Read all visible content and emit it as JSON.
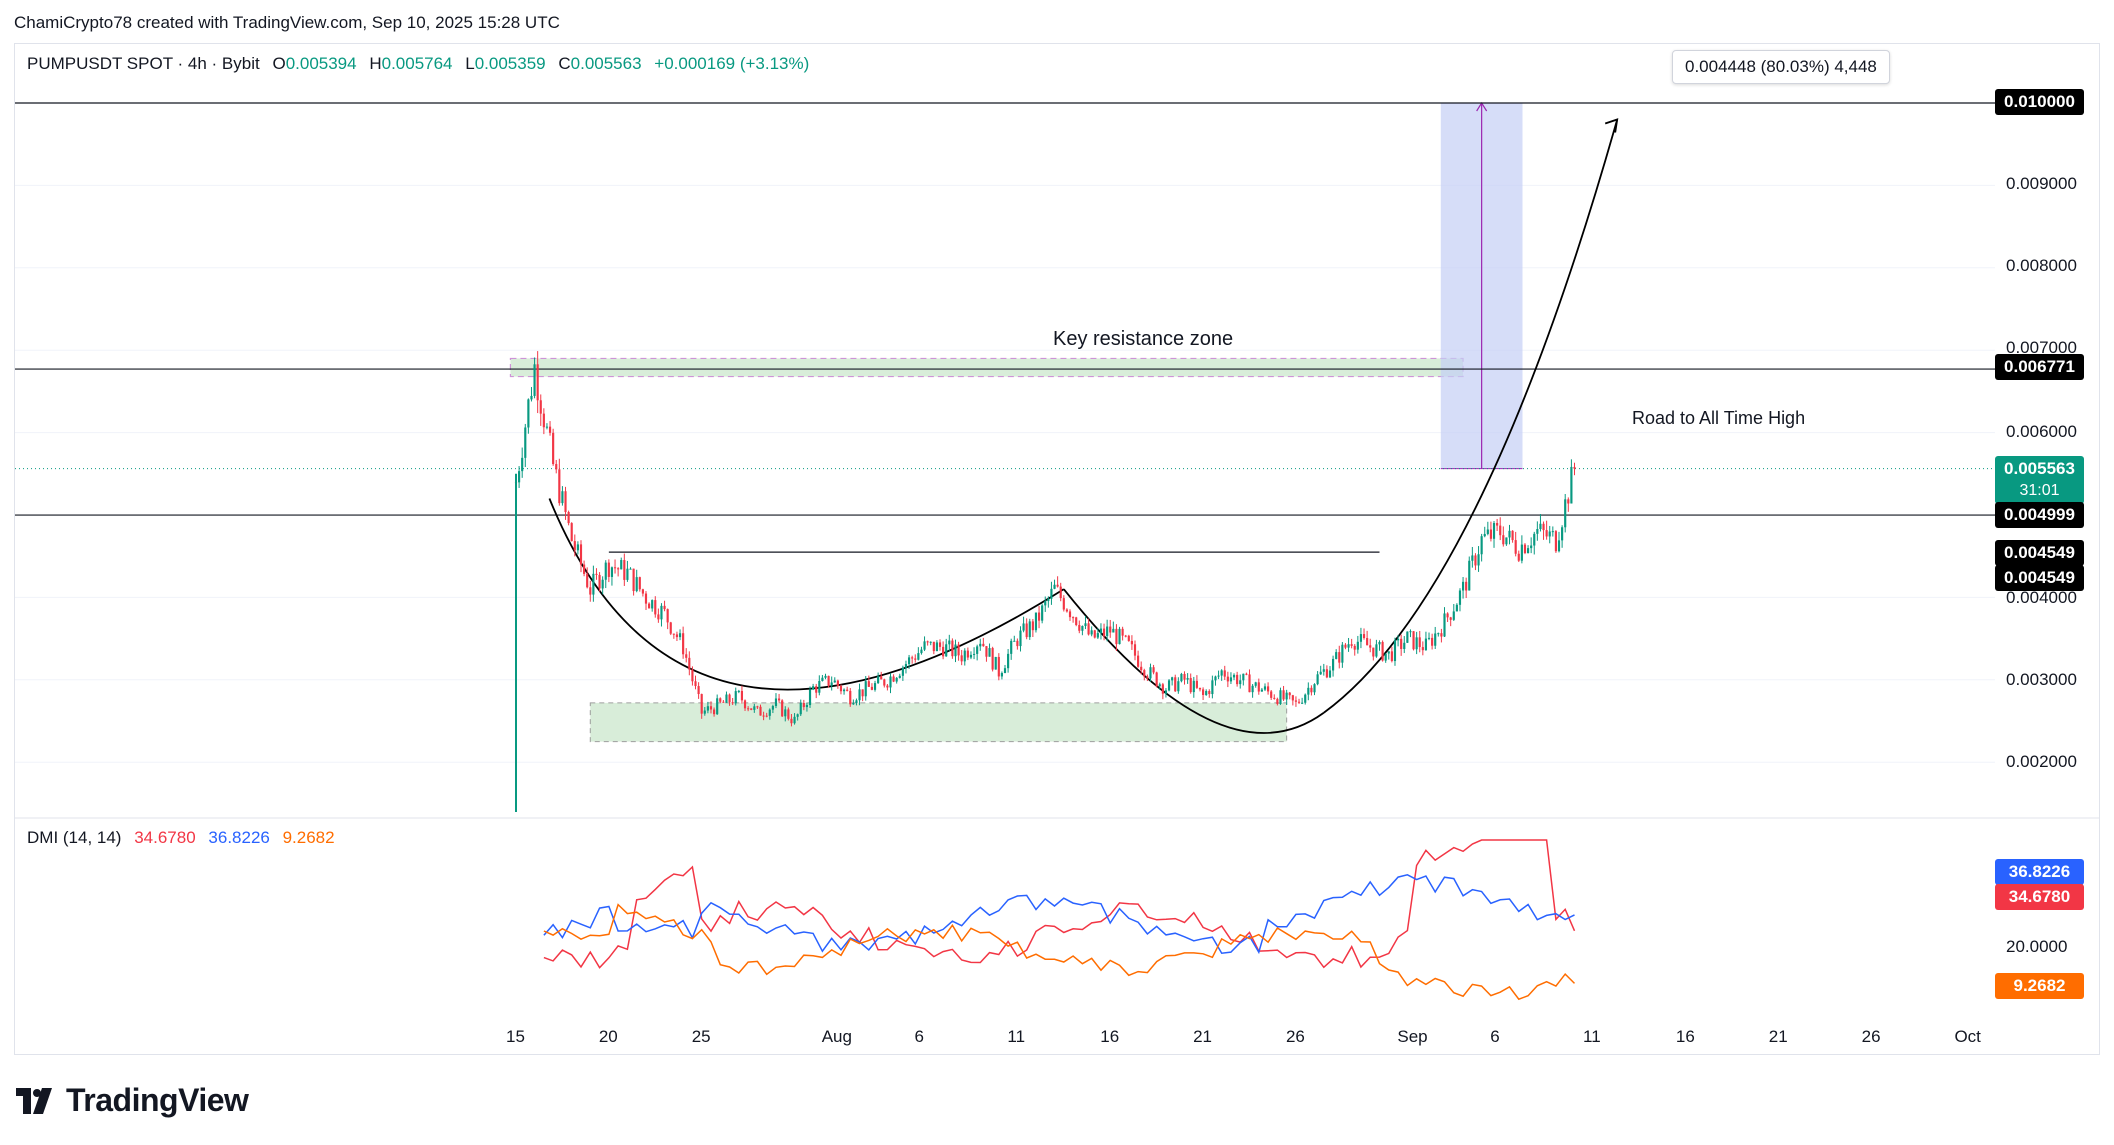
{
  "header": {
    "credit": "ChamiCrypto78 created with TradingView.com, Sep 10, 2025 15:28 UTC"
  },
  "symbol": {
    "name": "PUMPUSDT SPOT · 4h · Bybit",
    "open_label": "O",
    "open": "0.005394",
    "high_label": "H",
    "high": "0.005764",
    "low_label": "L",
    "low": "0.005359",
    "close_label": "C",
    "close": "0.005563",
    "change": "+0.000169 (+3.13%)"
  },
  "measure": {
    "text": "0.004448 (80.03%) 4,448"
  },
  "annotations": {
    "resistance": "Key resistance zone",
    "road": "Road to All Time High"
  },
  "price_axis": {
    "ticks": [
      "0.009000",
      "0.008000",
      "0.007000",
      "0.006000",
      "0.004000",
      "0.003000",
      "0.002000"
    ],
    "tags": {
      "top": "0.010000",
      "resistance": "0.006771",
      "current_price": "0.005563",
      "countdown": "31:01",
      "support": "0.004999",
      "neck1": "0.004549",
      "neck2": "0.004549"
    }
  },
  "dmi": {
    "name": "DMI (14, 14)",
    "plus_di": "34.6780",
    "minus_di": "36.8226",
    "adx": "9.2682",
    "axis_tick": "20.0000",
    "colors": {
      "plus_di": "#f23645",
      "minus_di": "#2962ff",
      "adx": "#ff6d00"
    }
  },
  "time_axis": {
    "labels": [
      "15",
      "20",
      "25",
      "Aug",
      "6",
      "11",
      "16",
      "21",
      "26",
      "Sep",
      "6",
      "11",
      "16",
      "21",
      "26",
      "Oct"
    ]
  },
  "colors": {
    "up": "#089981",
    "down": "#f23645",
    "zone": "#c8e6c9",
    "measure_fill": "#c5cff5",
    "measure_line": "#9c27b0"
  },
  "logo": {
    "text": "TradingView"
  },
  "chart_data": {
    "type": "candlestick",
    "title": "PUMPUSDT SPOT · 4h · Bybit",
    "x_start": "2025-07-15",
    "x_end": "2025-09-10",
    "ylim": [
      0.0015,
      0.0104
    ],
    "key_levels": [
      0.01,
      0.006771,
      0.004999,
      0.004549
    ],
    "support_zone": [
      0.00225,
      0.00272
    ],
    "resistance_zone": [
      0.00668,
      0.0069
    ],
    "close_path": [
      [
        "2025-07-15",
        0.0054
      ],
      [
        "2025-07-16",
        0.0068
      ],
      [
        "2025-07-17",
        0.0056
      ],
      [
        "2025-07-18",
        0.0047
      ],
      [
        "2025-07-19",
        0.0041
      ],
      [
        "2025-07-20",
        0.0044
      ],
      [
        "2025-07-21",
        0.0043
      ],
      [
        "2025-07-22",
        0.004
      ],
      [
        "2025-07-23",
        0.0038
      ],
      [
        "2025-07-24",
        0.0034
      ],
      [
        "2025-07-25",
        0.0026
      ],
      [
        "2025-07-26",
        0.0027
      ],
      [
        "2025-07-27",
        0.0028
      ],
      [
        "2025-07-28",
        0.0026
      ],
      [
        "2025-07-29",
        0.0027
      ],
      [
        "2025-07-30",
        0.0025
      ],
      [
        "2025-07-31",
        0.0029
      ],
      [
        "2025-08-01",
        0.003
      ],
      [
        "2025-08-02",
        0.0028
      ],
      [
        "2025-08-03",
        0.0029
      ],
      [
        "2025-08-04",
        0.003
      ],
      [
        "2025-08-05",
        0.0032
      ],
      [
        "2025-08-06",
        0.0034
      ],
      [
        "2025-08-07",
        0.0034
      ],
      [
        "2025-08-08",
        0.0033
      ],
      [
        "2025-08-09",
        0.0035
      ],
      [
        "2025-08-10",
        0.0031
      ],
      [
        "2025-08-11",
        0.0035
      ],
      [
        "2025-08-12",
        0.0037
      ],
      [
        "2025-08-13",
        0.0041
      ],
      [
        "2025-08-14",
        0.0038
      ],
      [
        "2025-08-15",
        0.0035
      ],
      [
        "2025-08-16",
        0.0036
      ],
      [
        "2025-08-17",
        0.0034
      ],
      [
        "2025-08-18",
        0.0031
      ],
      [
        "2025-08-19",
        0.0029
      ],
      [
        "2025-08-20",
        0.003
      ],
      [
        "2025-08-21",
        0.0028
      ],
      [
        "2025-08-22",
        0.0031
      ],
      [
        "2025-08-23",
        0.003
      ],
      [
        "2025-08-24",
        0.0029
      ],
      [
        "2025-08-25",
        0.0028
      ],
      [
        "2025-08-26",
        0.0027
      ],
      [
        "2025-08-27",
        0.003
      ],
      [
        "2025-08-28",
        0.0032
      ],
      [
        "2025-08-29",
        0.0035
      ],
      [
        "2025-08-30",
        0.0034
      ],
      [
        "2025-08-31",
        0.0033
      ],
      [
        "2025-09-01",
        0.0035
      ],
      [
        "2025-09-02",
        0.0034
      ],
      [
        "2025-09-03",
        0.0037
      ],
      [
        "2025-09-04",
        0.0041
      ],
      [
        "2025-09-05",
        0.0047
      ],
      [
        "2025-09-06",
        0.0048
      ],
      [
        "2025-09-07",
        0.0046
      ],
      [
        "2025-09-08",
        0.0048
      ],
      [
        "2025-09-09",
        0.0047
      ],
      [
        "2025-09-10",
        0.005563
      ]
    ]
  }
}
